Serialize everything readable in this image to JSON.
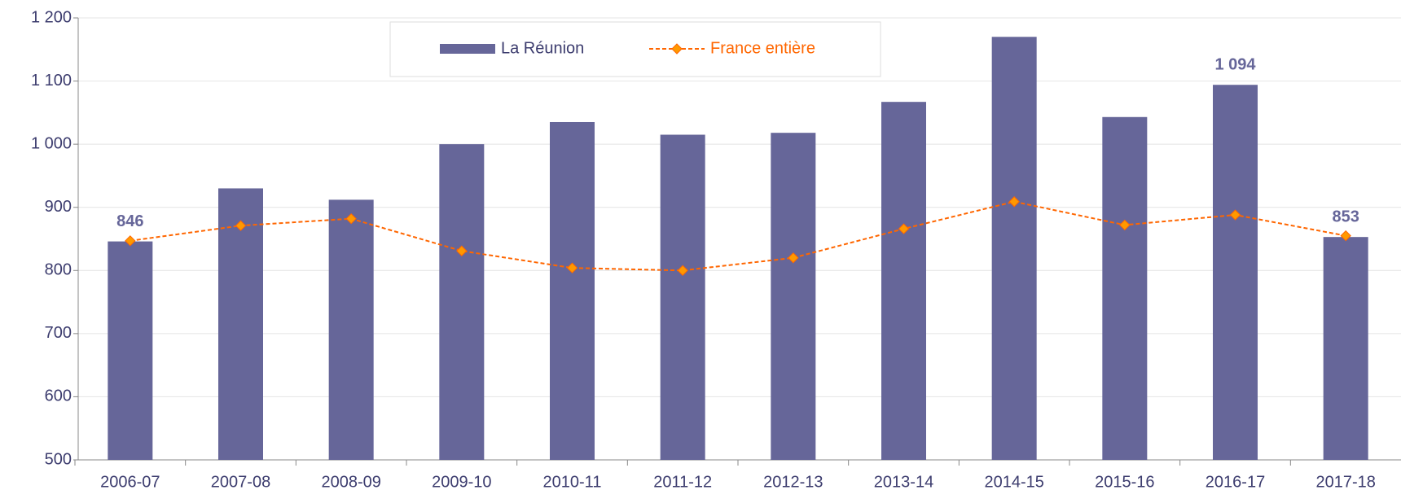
{
  "chart_data": {
    "type": "bar_line",
    "categories": [
      "2006-07",
      "2007-08",
      "2008-09",
      "2009-10",
      "2010-11",
      "2011-12",
      "2012-13",
      "2013-14",
      "2014-15",
      "2015-16",
      "2016-17",
      "2017-18"
    ],
    "series": [
      {
        "name": "La Réunion",
        "type": "bar",
        "color": "#666699",
        "values": [
          846,
          930,
          912,
          1000,
          1035,
          1015,
          1018,
          1067,
          1170,
          1043,
          1094,
          853
        ],
        "value_labels": [
          "846",
          null,
          null,
          null,
          null,
          null,
          null,
          null,
          null,
          null,
          "1 094",
          "853"
        ]
      },
      {
        "name": "France entière",
        "type": "line",
        "color": "#ff6600",
        "marker_color": "#ff9900",
        "values": [
          847,
          871,
          882,
          831,
          804,
          800,
          820,
          866,
          909,
          872,
          888,
          855
        ]
      }
    ],
    "ylim": [
      500,
      1200
    ],
    "yticks": [
      500,
      600,
      700,
      800,
      900,
      {
        "value": 1000,
        "label": "1 000"
      },
      {
        "value": 1100,
        "label": "1 100"
      },
      {
        "value": 1200,
        "label": "1 200"
      }
    ],
    "grid": true
  }
}
